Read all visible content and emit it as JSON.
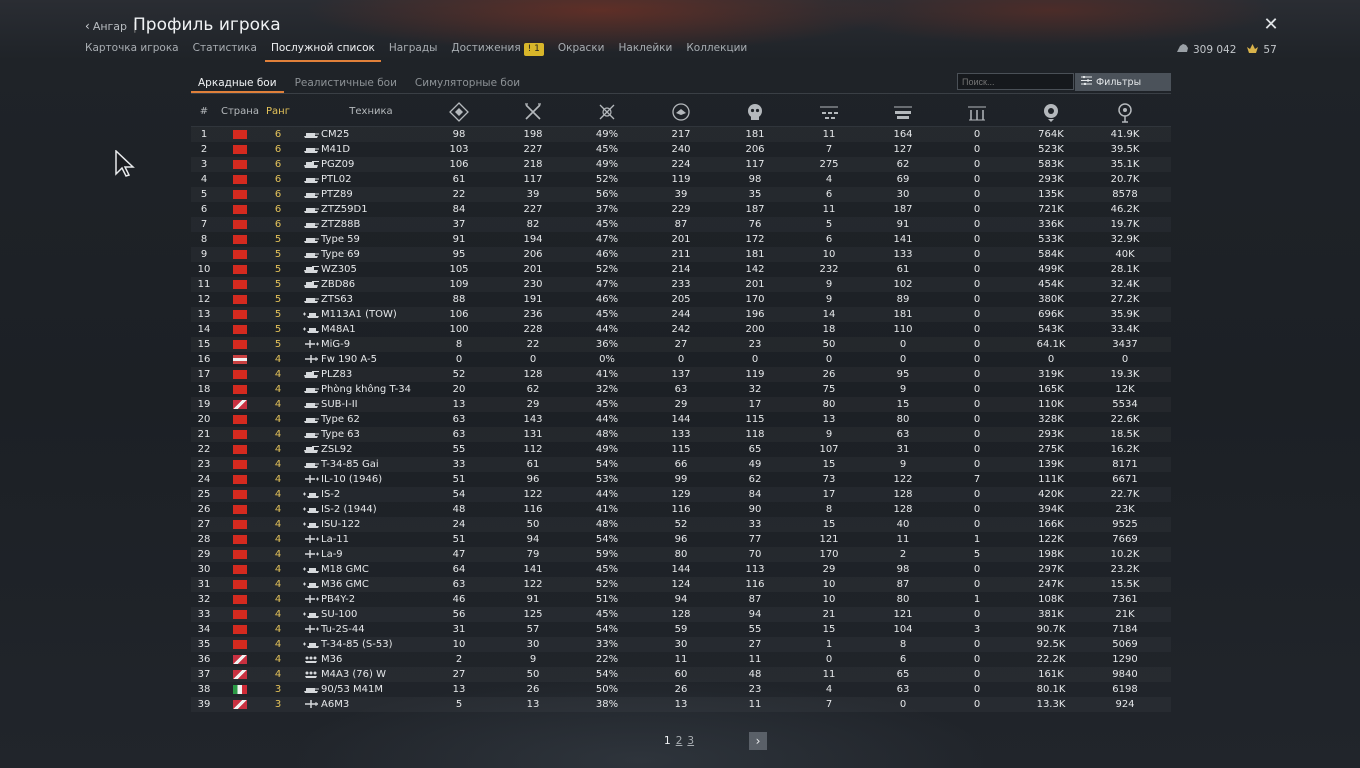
{
  "header": {
    "back_label": "Ангар",
    "separator": "|",
    "title": "Профиль игрока"
  },
  "nav": {
    "tabs": [
      {
        "label": "Карточка игрока",
        "active": false
      },
      {
        "label": "Статистика",
        "active": false
      },
      {
        "label": "Послужной список",
        "active": true
      },
      {
        "label": "Награды",
        "active": false
      },
      {
        "label": "Достижения",
        "active": false,
        "badge": "1"
      },
      {
        "label": "Окраски",
        "active": false
      },
      {
        "label": "Наклейки",
        "active": false
      },
      {
        "label": "Коллекции",
        "active": false
      }
    ]
  },
  "currency": {
    "silver": "309 042",
    "gold": "57"
  },
  "modes": [
    {
      "label": "Аркадные бои",
      "active": true
    },
    {
      "label": "Реалистичные бои",
      "active": false
    },
    {
      "label": "Симуляторные бои",
      "active": false
    }
  ],
  "search": {
    "placeholder": "Поиск..."
  },
  "filters_label": "Фильтры",
  "table": {
    "headers": {
      "num": "#",
      "country": "Страна",
      "rank": "Ранг",
      "vehicle": "Техника"
    },
    "stat_icons": [
      "battles-icon",
      "victories-icon",
      "win-rate-icon",
      "respawns-icon",
      "deaths-icon",
      "air-kills-icon",
      "ground-kills-icon",
      "naval-kills-icon",
      "activity-icon",
      "research-icon"
    ],
    "rows": [
      {
        "n": "1",
        "flag": "cn",
        "rank": "6",
        "type": "tank",
        "name": "CM25",
        "s": [
          "98",
          "198",
          "49%",
          "217",
          "181",
          "11",
          "164",
          "0",
          "764K",
          "41.9K"
        ]
      },
      {
        "n": "2",
        "flag": "cn",
        "rank": "6",
        "type": "tank",
        "name": "M41D",
        "s": [
          "103",
          "227",
          "45%",
          "240",
          "206",
          "7",
          "127",
          "0",
          "523K",
          "39.5K"
        ]
      },
      {
        "n": "3",
        "flag": "cn",
        "rank": "6",
        "type": "spg",
        "name": "PGZ09",
        "s": [
          "106",
          "218",
          "49%",
          "224",
          "117",
          "275",
          "62",
          "0",
          "583K",
          "35.1K"
        ]
      },
      {
        "n": "4",
        "flag": "cn",
        "rank": "6",
        "type": "tank",
        "name": "PTL02",
        "s": [
          "61",
          "117",
          "52%",
          "119",
          "98",
          "4",
          "69",
          "0",
          "293K",
          "20.7K"
        ]
      },
      {
        "n": "5",
        "flag": "cn",
        "rank": "6",
        "type": "tank",
        "name": "PTZ89",
        "s": [
          "22",
          "39",
          "56%",
          "39",
          "35",
          "6",
          "30",
          "0",
          "135K",
          "8578"
        ]
      },
      {
        "n": "6",
        "flag": "cn",
        "rank": "6",
        "type": "tank",
        "name": "ZTZ59D1",
        "s": [
          "84",
          "227",
          "37%",
          "229",
          "187",
          "11",
          "187",
          "0",
          "721K",
          "46.2K"
        ]
      },
      {
        "n": "7",
        "flag": "cn",
        "rank": "6",
        "type": "tank",
        "name": "ZTZ88B",
        "s": [
          "37",
          "82",
          "45%",
          "87",
          "76",
          "5",
          "91",
          "0",
          "336K",
          "19.7K"
        ]
      },
      {
        "n": "8",
        "flag": "cn",
        "rank": "5",
        "type": "tank",
        "name": "Type 59",
        "s": [
          "91",
          "194",
          "47%",
          "201",
          "172",
          "6",
          "141",
          "0",
          "533K",
          "32.9K"
        ]
      },
      {
        "n": "9",
        "flag": "cn",
        "rank": "5",
        "type": "tank",
        "name": "Type 69",
        "s": [
          "95",
          "206",
          "46%",
          "211",
          "181",
          "10",
          "133",
          "0",
          "584K",
          "40K"
        ]
      },
      {
        "n": "10",
        "flag": "cn",
        "rank": "5",
        "type": "spg",
        "name": "WZ305",
        "s": [
          "105",
          "201",
          "52%",
          "214",
          "142",
          "232",
          "61",
          "0",
          "499K",
          "28.1K"
        ]
      },
      {
        "n": "11",
        "flag": "cn",
        "rank": "5",
        "type": "spg",
        "name": "ZBD86",
        "s": [
          "109",
          "230",
          "47%",
          "233",
          "201",
          "9",
          "102",
          "0",
          "454K",
          "32.4K"
        ]
      },
      {
        "n": "12",
        "flag": "cn",
        "rank": "5",
        "type": "tank",
        "name": "ZTS63",
        "s": [
          "88",
          "191",
          "46%",
          "205",
          "170",
          "9",
          "89",
          "0",
          "380K",
          "27.2K"
        ]
      },
      {
        "n": "13",
        "flag": "cn",
        "rank": "5",
        "type": "group",
        "name": "M113A1 (TOW)",
        "s": [
          "106",
          "236",
          "45%",
          "244",
          "196",
          "14",
          "181",
          "0",
          "696K",
          "35.9K"
        ]
      },
      {
        "n": "14",
        "flag": "cn",
        "rank": "5",
        "type": "group",
        "name": "M48A1",
        "s": [
          "100",
          "228",
          "44%",
          "242",
          "200",
          "18",
          "110",
          "0",
          "543K",
          "33.4K"
        ]
      },
      {
        "n": "15",
        "flag": "cn",
        "rank": "5",
        "type": "plane-group",
        "name": "MiG-9",
        "s": [
          "8",
          "22",
          "36%",
          "27",
          "23",
          "50",
          "0",
          "0",
          "64.1K",
          "3437"
        ]
      },
      {
        "n": "16",
        "flag": "de",
        "rank": "4",
        "type": "plane",
        "name": "Fw 190 A-5",
        "s": [
          "0",
          "0",
          "0%",
          "0",
          "0",
          "0",
          "0",
          "0",
          "0",
          "0"
        ]
      },
      {
        "n": "17",
        "flag": "cn",
        "rank": "4",
        "type": "spg",
        "name": "PLZ83",
        "s": [
          "52",
          "128",
          "41%",
          "137",
          "119",
          "26",
          "95",
          "0",
          "319K",
          "19.3K"
        ]
      },
      {
        "n": "18",
        "flag": "cn",
        "rank": "4",
        "type": "tank",
        "name": "Phòng không T-34",
        "s": [
          "20",
          "62",
          "32%",
          "63",
          "32",
          "75",
          "9",
          "0",
          "165K",
          "12K"
        ]
      },
      {
        "n": "19",
        "flag": "uk",
        "rank": "4",
        "type": "tank",
        "name": "SUB-I-II",
        "s": [
          "13",
          "29",
          "45%",
          "29",
          "17",
          "80",
          "15",
          "0",
          "110K",
          "5534"
        ]
      },
      {
        "n": "20",
        "flag": "cn",
        "rank": "4",
        "type": "tank",
        "name": "Type 62",
        "s": [
          "63",
          "143",
          "44%",
          "144",
          "115",
          "13",
          "80",
          "0",
          "328K",
          "22.6K"
        ]
      },
      {
        "n": "21",
        "flag": "cn",
        "rank": "4",
        "type": "tank",
        "name": "Type 63",
        "s": [
          "63",
          "131",
          "48%",
          "133",
          "118",
          "9",
          "63",
          "0",
          "293K",
          "18.5K"
        ]
      },
      {
        "n": "22",
        "flag": "cn",
        "rank": "4",
        "type": "spg",
        "name": "ZSL92",
        "s": [
          "55",
          "112",
          "49%",
          "115",
          "65",
          "107",
          "31",
          "0",
          "275K",
          "16.2K"
        ]
      },
      {
        "n": "23",
        "flag": "cn",
        "rank": "4",
        "type": "tank",
        "name": "T-34-85 Gai",
        "s": [
          "33",
          "61",
          "54%",
          "66",
          "49",
          "15",
          "9",
          "0",
          "139K",
          "8171"
        ]
      },
      {
        "n": "24",
        "flag": "cn",
        "rank": "4",
        "type": "plane-group",
        "name": "IL-10 (1946)",
        "s": [
          "51",
          "96",
          "53%",
          "99",
          "62",
          "73",
          "122",
          "7",
          "111K",
          "6671"
        ]
      },
      {
        "n": "25",
        "flag": "cn",
        "rank": "4",
        "type": "group",
        "name": "IS-2",
        "s": [
          "54",
          "122",
          "44%",
          "129",
          "84",
          "17",
          "128",
          "0",
          "420K",
          "22.7K"
        ]
      },
      {
        "n": "26",
        "flag": "cn",
        "rank": "4",
        "type": "group",
        "name": "IS-2 (1944)",
        "s": [
          "48",
          "116",
          "41%",
          "116",
          "90",
          "8",
          "128",
          "0",
          "394K",
          "23K"
        ]
      },
      {
        "n": "27",
        "flag": "cn",
        "rank": "4",
        "type": "group",
        "name": "ISU-122",
        "s": [
          "24",
          "50",
          "48%",
          "52",
          "33",
          "15",
          "40",
          "0",
          "166K",
          "9525"
        ]
      },
      {
        "n": "28",
        "flag": "cn",
        "rank": "4",
        "type": "plane-group",
        "name": "La-11",
        "s": [
          "51",
          "94",
          "54%",
          "96",
          "77",
          "121",
          "11",
          "1",
          "122K",
          "7669"
        ]
      },
      {
        "n": "29",
        "flag": "cn",
        "rank": "4",
        "type": "plane-group",
        "name": "La-9",
        "s": [
          "47",
          "79",
          "59%",
          "80",
          "70",
          "170",
          "2",
          "5",
          "198K",
          "10.2K"
        ]
      },
      {
        "n": "30",
        "flag": "cn",
        "rank": "4",
        "type": "group",
        "name": "M18 GMC",
        "s": [
          "64",
          "141",
          "45%",
          "144",
          "113",
          "29",
          "98",
          "0",
          "297K",
          "23.2K"
        ]
      },
      {
        "n": "31",
        "flag": "cn",
        "rank": "4",
        "type": "group",
        "name": "M36 GMC",
        "s": [
          "63",
          "122",
          "52%",
          "124",
          "116",
          "10",
          "87",
          "0",
          "247K",
          "15.5K"
        ]
      },
      {
        "n": "32",
        "flag": "cn",
        "rank": "4",
        "type": "plane-group",
        "name": "PB4Y-2",
        "s": [
          "46",
          "91",
          "51%",
          "94",
          "87",
          "10",
          "80",
          "1",
          "108K",
          "7361"
        ]
      },
      {
        "n": "33",
        "flag": "cn",
        "rank": "4",
        "type": "group",
        "name": "SU-100",
        "s": [
          "56",
          "125",
          "45%",
          "128",
          "94",
          "21",
          "121",
          "0",
          "381K",
          "21K"
        ]
      },
      {
        "n": "34",
        "flag": "cn",
        "rank": "4",
        "type": "plane-group",
        "name": "Tu-2S-44",
        "s": [
          "31",
          "57",
          "54%",
          "59",
          "55",
          "15",
          "104",
          "3",
          "90.7K",
          "7184"
        ]
      },
      {
        "n": "35",
        "flag": "cn",
        "rank": "4",
        "type": "group",
        "name": "T-34-85 (S-53)",
        "s": [
          "10",
          "30",
          "33%",
          "30",
          "27",
          "1",
          "8",
          "0",
          "92.5K",
          "5069"
        ]
      },
      {
        "n": "36",
        "flag": "uk",
        "rank": "4",
        "type": "squad",
        "name": "M36",
        "s": [
          "2",
          "9",
          "22%",
          "11",
          "11",
          "0",
          "6",
          "0",
          "22.2K",
          "1290"
        ]
      },
      {
        "n": "37",
        "flag": "uk",
        "rank": "4",
        "type": "squad",
        "name": "M4A3 (76) W",
        "s": [
          "27",
          "50",
          "54%",
          "60",
          "48",
          "11",
          "65",
          "0",
          "161K",
          "9840"
        ]
      },
      {
        "n": "38",
        "flag": "it",
        "rank": "3",
        "type": "tank",
        "name": "90/53 M41M",
        "s": [
          "13",
          "26",
          "50%",
          "26",
          "23",
          "4",
          "63",
          "0",
          "80.1K",
          "6198"
        ]
      },
      {
        "n": "39",
        "flag": "uk",
        "rank": "3",
        "type": "plane",
        "name": "A6M3",
        "s": [
          "5",
          "13",
          "38%",
          "13",
          "11",
          "7",
          "0",
          "0",
          "13.3K",
          "924"
        ]
      }
    ]
  },
  "pagination": {
    "pages": [
      "1",
      "2",
      "3"
    ],
    "current": "1"
  }
}
